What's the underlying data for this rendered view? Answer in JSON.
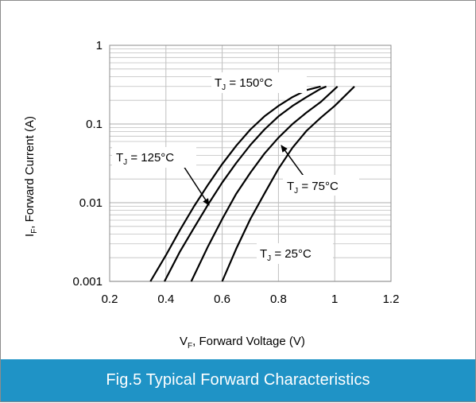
{
  "chart_data": {
    "type": "line",
    "xlabel": {
      "main": "V",
      "sub": "F",
      "rest": ", Forward Voltage (V)"
    },
    "ylabel": {
      "main": "I",
      "sub": "F",
      "rest": ", Forward Current (A)"
    },
    "xlim": [
      0.2,
      1.2
    ],
    "ylim": [
      0.001,
      1
    ],
    "yscale": "log",
    "grid": true,
    "x_ticks": [
      {
        "value": 0.2,
        "label": "0.2"
      },
      {
        "value": 0.4,
        "label": "0.4"
      },
      {
        "value": 0.6,
        "label": "0.6"
      },
      {
        "value": 0.8,
        "label": "0.8"
      },
      {
        "value": 1.0,
        "label": "1"
      },
      {
        "value": 1.2,
        "label": "1.2"
      }
    ],
    "y_ticks": [
      {
        "value": 0.001,
        "label": "0.001"
      },
      {
        "value": 0.01,
        "label": "0.01"
      },
      {
        "value": 0.1,
        "label": "0.1"
      },
      {
        "value": 1,
        "label": "1"
      }
    ],
    "series": [
      {
        "x": [
          0.345,
          0.4,
          0.45,
          0.5,
          0.55,
          0.6,
          0.65,
          0.7,
          0.75,
          0.8,
          0.85,
          0.9,
          0.95
        ],
        "y": [
          0.001,
          0.00215,
          0.0045,
          0.009,
          0.017,
          0.031,
          0.053,
          0.085,
          0.125,
          0.17,
          0.22,
          0.27,
          0.3
        ]
      },
      {
        "x": [
          0.395,
          0.45,
          0.5,
          0.55,
          0.6,
          0.65,
          0.7,
          0.75,
          0.8,
          0.85,
          0.9,
          0.95,
          0.97
        ],
        "y": [
          0.001,
          0.0024,
          0.0048,
          0.0095,
          0.018,
          0.032,
          0.054,
          0.085,
          0.125,
          0.17,
          0.22,
          0.28,
          0.3
        ]
      },
      {
        "x": [
          0.49,
          0.55,
          0.6,
          0.65,
          0.7,
          0.75,
          0.8,
          0.85,
          0.9,
          0.95,
          1.01
        ],
        "y": [
          0.001,
          0.0028,
          0.0062,
          0.013,
          0.024,
          0.042,
          0.067,
          0.1,
          0.14,
          0.19,
          0.3
        ]
      },
      {
        "x": [
          0.6,
          0.65,
          0.7,
          0.75,
          0.8,
          0.85,
          0.9,
          0.95,
          1.0,
          1.07
        ],
        "y": [
          0.001,
          0.0026,
          0.0062,
          0.013,
          0.027,
          0.05,
          0.082,
          0.12,
          0.17,
          0.3
        ]
      }
    ],
    "annotations": [
      {
        "main": "T",
        "sub": "J",
        "rest": " = 150°C"
      },
      {
        "main": "T",
        "sub": "J",
        "rest": " = 125°C"
      },
      {
        "main": "T",
        "sub": "J",
        "rest": " = 75°C"
      },
      {
        "main": "T",
        "sub": "J",
        "rest": " = 25°C"
      }
    ]
  },
  "caption": "Fig.5 Typical Forward Characteristics",
  "colors": {
    "caption_bg": "#1f93c6",
    "caption_text": "#ffffff",
    "line": "#000000",
    "grid": "#bfbfbf"
  }
}
